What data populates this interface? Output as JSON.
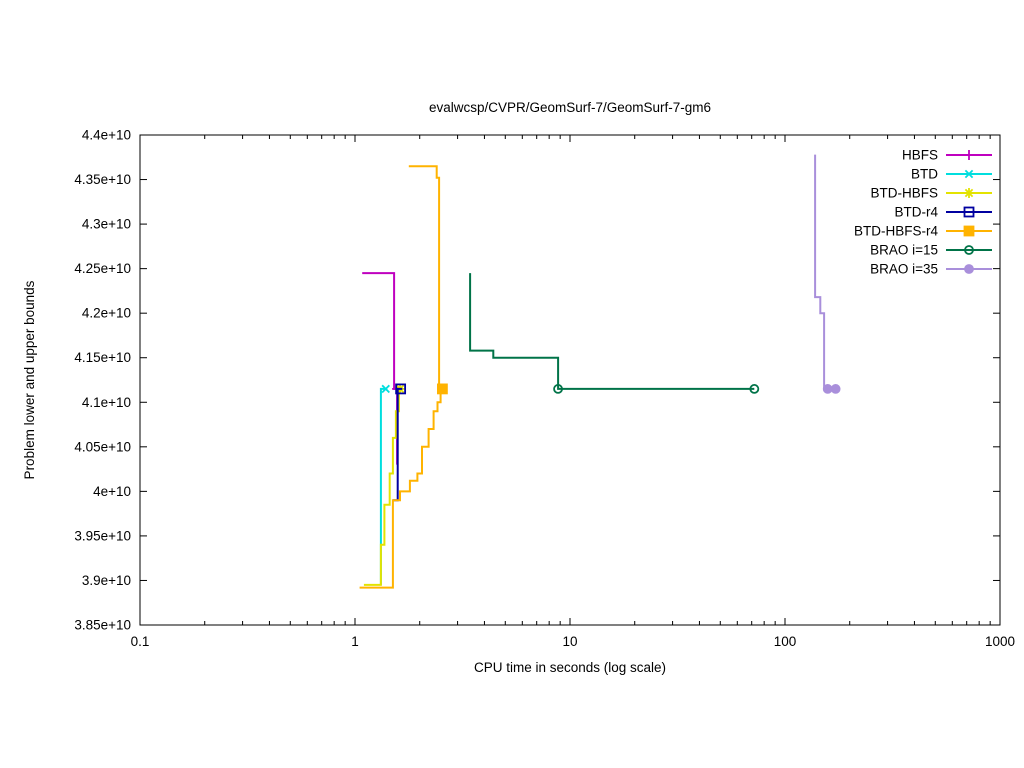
{
  "chart": {
    "title": "evalwcsp/CVPR/GeomSurf-7/GeomSurf-7-gm6",
    "xlabel": "CPU time in seconds (log scale)",
    "ylabel": "Problem lower and upper bounds"
  },
  "chart_data": {
    "type": "line",
    "x_scale": "log",
    "xlim": [
      0.1,
      1000
    ],
    "ylim": [
      38500000000,
      44000000000
    ],
    "grid": false,
    "legend_position": "top-right-inside",
    "x_ticks": [
      {
        "v": 0.1,
        "label": "0.1"
      },
      {
        "v": 1,
        "label": "1"
      },
      {
        "v": 10,
        "label": "10"
      },
      {
        "v": 100,
        "label": "100"
      },
      {
        "v": 1000,
        "label": "1000"
      }
    ],
    "y_ticks": [
      {
        "v": 38500000000,
        "label": "3.85e+10"
      },
      {
        "v": 39000000000,
        "label": "3.9e+10"
      },
      {
        "v": 39500000000,
        "label": "3.95e+10"
      },
      {
        "v": 40000000000,
        "label": "4e+10"
      },
      {
        "v": 40500000000,
        "label": "4.05e+10"
      },
      {
        "v": 41000000000,
        "label": "4.1e+10"
      },
      {
        "v": 41500000000,
        "label": "4.15e+10"
      },
      {
        "v": 42000000000,
        "label": "4.2e+10"
      },
      {
        "v": 42500000000,
        "label": "4.25e+10"
      },
      {
        "v": 43000000000,
        "label": "4.3e+10"
      },
      {
        "v": 43500000000,
        "label": "4.35e+10"
      },
      {
        "v": 44000000000,
        "label": "4.4e+10"
      }
    ],
    "series": [
      {
        "name": "HBFS",
        "color": "#bf00bf",
        "marker": "plus",
        "segments": [
          [
            [
              1.08,
              42450000000.0
            ],
            [
              1.52,
              42450000000.0
            ],
            [
              1.52,
              41150000000.0
            ],
            [
              1.57,
              41150000000.0
            ]
          ],
          [
            [
              1.57,
              40300000000.0
            ],
            [
              1.57,
              41150000000.0
            ]
          ]
        ],
        "marker_points": [
          [
            1.57,
            41150000000.0
          ]
        ]
      },
      {
        "name": "BTD",
        "color": "#00dede",
        "marker": "x",
        "segments": [
          [
            [
              1.32,
              38950000000.0
            ],
            [
              1.32,
              41150000000.0
            ],
            [
              1.41,
              41150000000.0
            ]
          ]
        ],
        "marker_points": [
          [
            1.39,
            41150000000.0
          ]
        ]
      },
      {
        "name": "BTD-HBFS",
        "color": "#e3e300",
        "marker": "asterisk",
        "segments": [
          [
            [
              1.1,
              38950000000.0
            ],
            [
              1.32,
              38950000000.0
            ],
            [
              1.32,
              39400000000.0
            ],
            [
              1.37,
              39400000000.0
            ],
            [
              1.37,
              39850000000.0
            ],
            [
              1.45,
              39850000000.0
            ],
            [
              1.45,
              40200000000.0
            ],
            [
              1.5,
              40200000000.0
            ],
            [
              1.5,
              40600000000.0
            ],
            [
              1.55,
              40600000000.0
            ],
            [
              1.55,
              40900000000.0
            ],
            [
              1.6,
              40900000000.0
            ],
            [
              1.6,
              41150000000.0
            ],
            [
              1.67,
              41150000000.0
            ]
          ]
        ],
        "marker_points": [
          [
            1.62,
            41150000000.0
          ]
        ]
      },
      {
        "name": "BTD-r4",
        "color": "#0000a0",
        "marker": "open-square",
        "segments": [
          [
            [
              1.5,
              39900000000.0
            ],
            [
              1.58,
              39900000000.0
            ],
            [
              1.58,
              41150000000.0
            ],
            [
              1.66,
              41150000000.0
            ]
          ]
        ],
        "marker_points": [
          [
            1.63,
            41150000000.0
          ]
        ]
      },
      {
        "name": "BTD-HBFS-r4",
        "color": "#ffb300",
        "marker": "filled-square",
        "segments": [
          [
            [
              1.78,
              43650000000.0
            ],
            [
              2.4,
              43650000000.0
            ],
            [
              2.4,
              43520000000.0
            ],
            [
              2.46,
              43520000000.0
            ],
            [
              2.46,
              41150000000.0
            ],
            [
              2.62,
              41150000000.0
            ]
          ],
          [
            [
              1.05,
              38920000000.0
            ],
            [
              1.5,
              38920000000.0
            ],
            [
              1.5,
              39900000000.0
            ],
            [
              1.62,
              39900000000.0
            ],
            [
              1.62,
              40000000000.0
            ],
            [
              1.8,
              40000000000.0
            ],
            [
              1.8,
              40120000000.0
            ],
            [
              1.95,
              40120000000.0
            ],
            [
              1.95,
              40200000000.0
            ],
            [
              2.05,
              40200000000.0
            ],
            [
              2.05,
              40500000000.0
            ],
            [
              2.2,
              40500000000.0
            ],
            [
              2.2,
              40700000000.0
            ],
            [
              2.32,
              40700000000.0
            ],
            [
              2.32,
              40900000000.0
            ],
            [
              2.42,
              40900000000.0
            ],
            [
              2.42,
              41000000000.0
            ],
            [
              2.5,
              41000000000.0
            ],
            [
              2.5,
              41150000000.0
            ]
          ]
        ],
        "marker_points": [
          [
            2.55,
            41150000000.0
          ]
        ]
      },
      {
        "name": "BRAO i=15",
        "color": "#007348",
        "marker": "open-circle",
        "segments": [
          [
            [
              3.43,
              42450000000.0
            ],
            [
              3.43,
              41580000000.0
            ],
            [
              4.4,
              41580000000.0
            ],
            [
              4.4,
              41500000000.0
            ],
            [
              8.8,
              41500000000.0
            ],
            [
              8.8,
              41150000000.0
            ],
            [
              72,
              41150000000.0
            ]
          ]
        ],
        "marker_points": [
          [
            8.8,
            41150000000.0
          ],
          [
            72,
            41150000000.0
          ]
        ]
      },
      {
        "name": "BRAO i=35",
        "color": "#a98fdb",
        "marker": "filled-circle",
        "segments": [
          [
            [
              138,
              43780000000.0
            ],
            [
              138,
              42180000000.0
            ],
            [
              146,
              42180000000.0
            ],
            [
              146,
              42000000000.0
            ],
            [
              152,
              42000000000.0
            ],
            [
              152,
              41150000000.0
            ],
            [
              178,
              41150000000.0
            ]
          ]
        ],
        "marker_points": [
          [
            158,
            41150000000.0
          ],
          [
            172,
            41150000000.0
          ]
        ]
      }
    ]
  }
}
